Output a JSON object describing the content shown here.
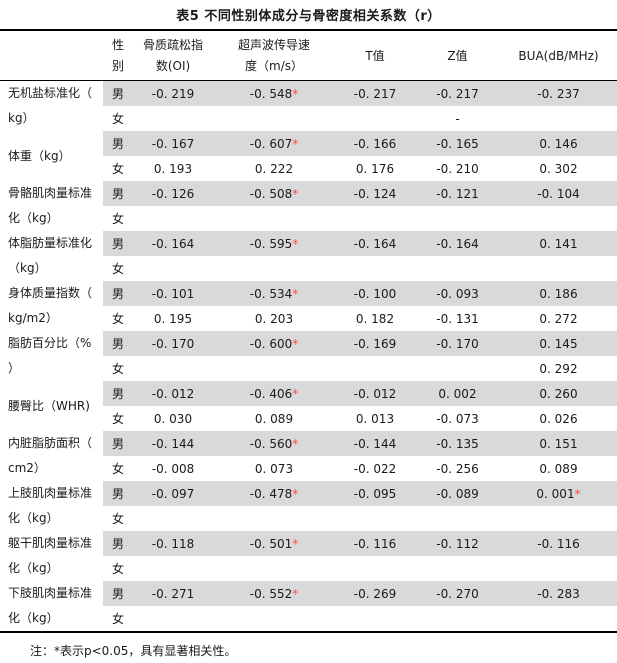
{
  "title": "表5 不同性别体成分与骨密度相关系数（r）",
  "note": "注：*表示p<0.05，具有显著相关性。",
  "colors": {
    "male_row_shade": "#d9d9d9",
    "significance_star": "#ff4a4a",
    "text": "#1a1a1a",
    "rule": "#000000"
  },
  "header": {
    "columns": [
      {
        "id": "measure",
        "lines": [
          "",
          ""
        ]
      },
      {
        "id": "gender",
        "lines": [
          "性",
          "别"
        ]
      },
      {
        "id": "oi",
        "lines": [
          "骨质疏松指",
          "数(OI)"
        ]
      },
      {
        "id": "sos",
        "lines": [
          "超声波传导速",
          "度（m/s）"
        ]
      },
      {
        "id": "t-value",
        "lines": [
          "T值"
        ]
      },
      {
        "id": "z-value",
        "lines": [
          "Z值"
        ]
      },
      {
        "id": "bua",
        "lines": [
          "BUA(dB/MHz)"
        ]
      }
    ]
  },
  "gender_labels": {
    "male": "男",
    "female": "女"
  },
  "rows": [
    {
      "label_lines": [
        "无机盐标准化（",
        "kg）"
      ],
      "male": [
        "-0. 219",
        "-0. 548*",
        "-0. 217",
        "-0. 217",
        "-0. 237"
      ],
      "female": [
        "",
        "",
        "",
        "-",
        ""
      ]
    },
    {
      "label_lines": [
        "体重（kg）"
      ],
      "male": [
        "-0. 167",
        "-0. 607*",
        "-0. 166",
        "-0. 165",
        "0. 146"
      ],
      "female": [
        "0. 193",
        "0. 222",
        "0. 176",
        "-0. 210",
        "0. 302"
      ]
    },
    {
      "label_lines": [
        "骨骼肌肉量标准",
        "化（kg）"
      ],
      "male": [
        "-0. 126",
        "-0. 508*",
        "-0. 124",
        "-0. 121",
        "-0. 104"
      ],
      "female": [
        "",
        "",
        "",
        "",
        ""
      ]
    },
    {
      "label_lines": [
        "体脂肪量标准化",
        "（kg）"
      ],
      "male": [
        "-0. 164",
        "-0. 595*",
        "-0. 164",
        "-0. 164",
        "0. 141"
      ],
      "female": [
        "",
        "",
        "",
        "",
        ""
      ]
    },
    {
      "label_lines": [
        "身体质量指数（",
        "kg/m2）"
      ],
      "male": [
        "-0. 101",
        "-0. 534*",
        "-0. 100",
        "-0. 093",
        "0. 186"
      ],
      "female": [
        "0. 195",
        "0. 203",
        "0. 182",
        "-0. 131",
        "0. 272"
      ]
    },
    {
      "label_lines": [
        "脂肪百分比（%",
        "）"
      ],
      "male": [
        "-0. 170",
        "-0. 600*",
        "-0. 169",
        "-0. 170",
        "0. 145"
      ],
      "female": [
        "",
        "",
        "",
        "",
        "0. 292"
      ]
    },
    {
      "label_lines": [
        "腰臀比（WHR)"
      ],
      "male": [
        "-0. 012",
        "-0. 406*",
        "-0. 012",
        "0. 002",
        "0. 260"
      ],
      "female": [
        "0. 030",
        "0. 089",
        "0. 013",
        "-0. 073",
        "0. 026"
      ]
    },
    {
      "label_lines": [
        "内脏脂肪面积（",
        "cm2）"
      ],
      "male": [
        "-0. 144",
        "-0. 560*",
        "-0. 144",
        "-0. 135",
        "0. 151"
      ],
      "female": [
        "-0. 008",
        "0. 073",
        "-0. 022",
        "-0. 256",
        "0. 089"
      ]
    },
    {
      "label_lines": [
        "上肢肌肉量标准",
        "化（kg）"
      ],
      "male": [
        "-0. 097",
        "-0. 478*",
        "-0. 095",
        "-0. 089",
        "0. 001*"
      ],
      "female": [
        "",
        "",
        "",
        "",
        ""
      ]
    },
    {
      "label_lines": [
        "躯干肌肉量标准",
        "化（kg）"
      ],
      "male": [
        "-0. 118",
        "-0. 501*",
        "-0. 116",
        "-0. 112",
        "-0. 116"
      ],
      "female": [
        "",
        "",
        "",
        "",
        ""
      ]
    },
    {
      "label_lines": [
        "下肢肌肉量标准",
        "化（kg）"
      ],
      "male": [
        "-0. 271",
        "-0. 552*",
        "-0. 269",
        "-0. 270",
        "-0. 283"
      ],
      "female": [
        "",
        "",
        "",
        "",
        ""
      ]
    }
  ]
}
